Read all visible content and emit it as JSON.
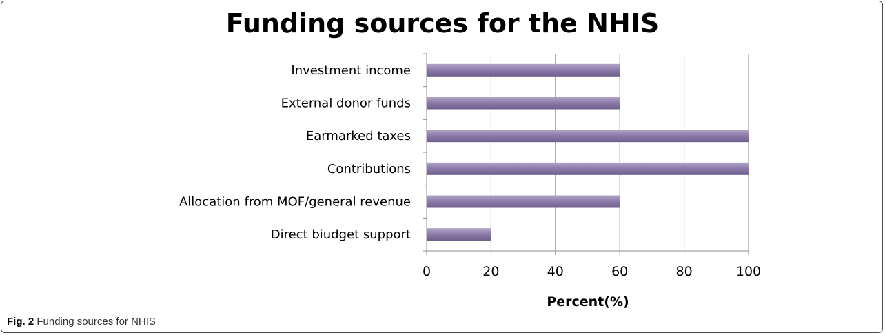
{
  "chart_data": {
    "type": "bar",
    "orientation": "horizontal",
    "title": "Funding sources for the NHIS",
    "xlabel": "Percent(%)",
    "ylabel": "",
    "categories": [
      "Investment income",
      "External donor funds",
      "Earmarked taxes",
      "Contributions",
      "Allocation from MOF/general revenue",
      "Direct biudget support"
    ],
    "values": [
      60,
      60,
      100,
      100,
      60,
      20
    ],
    "xlim": [
      0,
      100
    ],
    "xticks": [
      0,
      20,
      40,
      60,
      80,
      100
    ],
    "grid": "vertical",
    "legend": "none",
    "bar_color": "#8e7dab"
  },
  "caption": {
    "label": "Fig. 2",
    "text": "Funding sources for NHIS"
  }
}
